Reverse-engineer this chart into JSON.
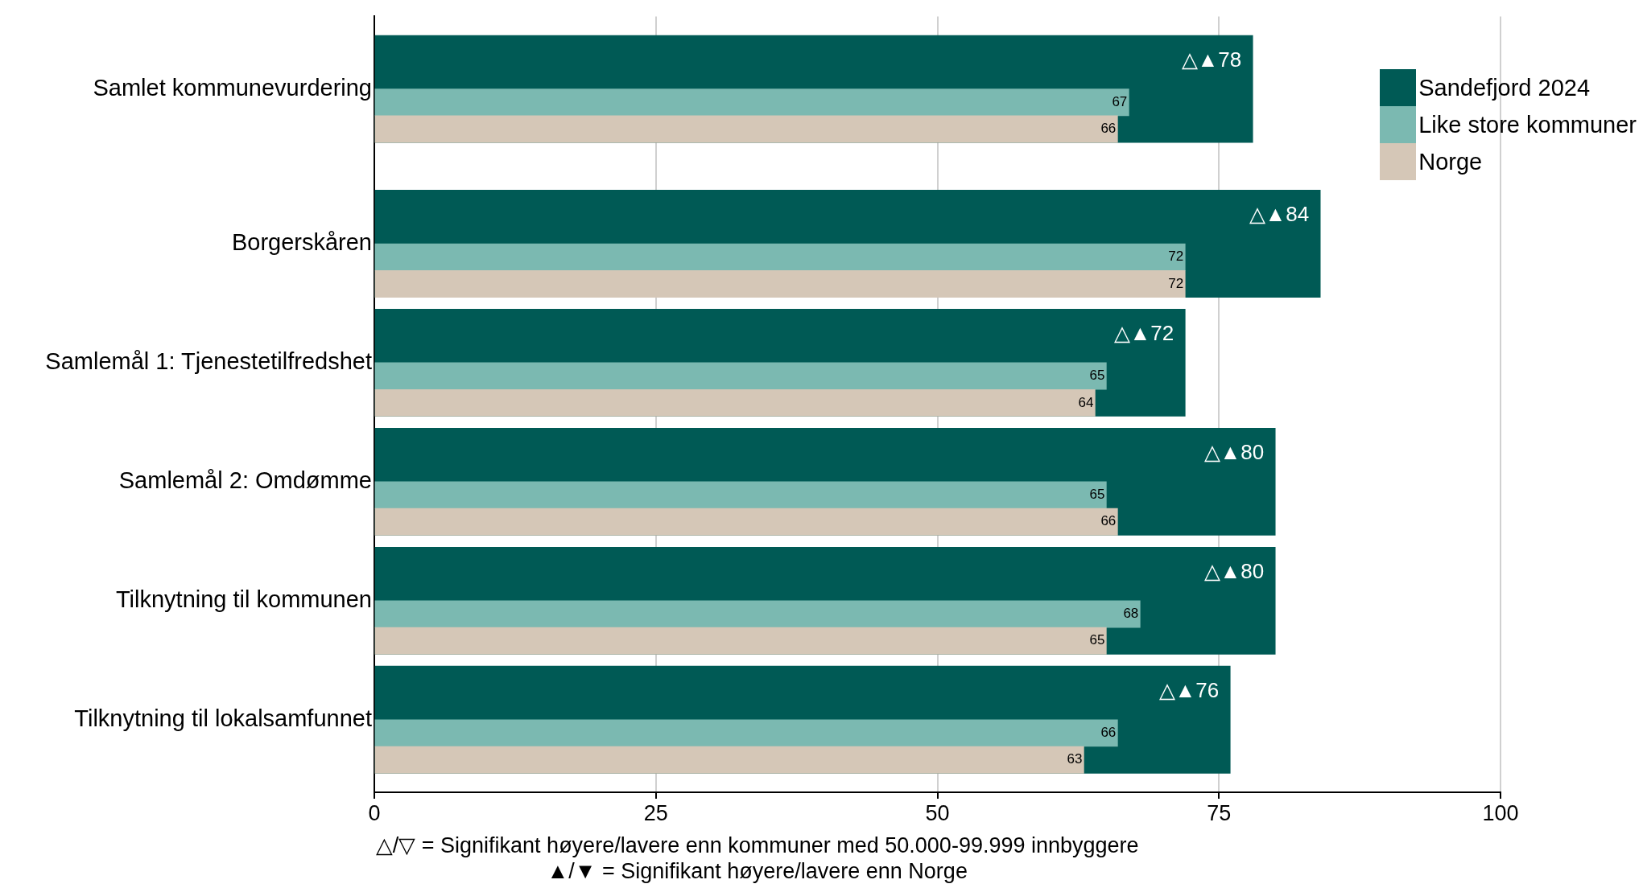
{
  "chart_data": {
    "type": "bar",
    "orientation": "horizontal",
    "categories": [
      "Samlet kommunevurdering",
      "Borgerskåren",
      "Samlemål 1: Tjenestetilfredshet",
      "Samlemål 2: Omdømme",
      "Tilknytning til kommunen",
      "Tilknytning til lokalsamfunnet"
    ],
    "series": [
      {
        "name": "Sandefjord 2024",
        "color": "#005a55",
        "values": [
          78,
          84,
          72,
          80,
          80,
          76
        ],
        "value_labels": [
          "△▲78",
          "△▲84",
          "△▲72",
          "△▲80",
          "△▲80",
          "△▲76"
        ]
      },
      {
        "name": "Like store kommuner",
        "color": "#7bb9b1",
        "values": [
          67,
          72,
          65,
          65,
          68,
          66
        ],
        "value_labels": [
          "67",
          "72",
          "65",
          "65",
          "68",
          "66"
        ]
      },
      {
        "name": "Norge",
        "color": "#d5c7b7",
        "values": [
          66,
          72,
          64,
          66,
          65,
          63
        ],
        "value_labels": [
          "66",
          "72",
          "64",
          "66",
          "65",
          "63"
        ]
      }
    ],
    "xlim": [
      0,
      100
    ],
    "xticks": [
      0,
      25,
      50,
      75,
      100
    ],
    "grid": "x",
    "legend": "top right",
    "annotations": [
      "△/▽ = Signifikant høyere/lavere enn kommuner med 50.000-99.999 innbyggere",
      "▲/▼ = Signifikant høyere/lavere enn Norge"
    ]
  }
}
